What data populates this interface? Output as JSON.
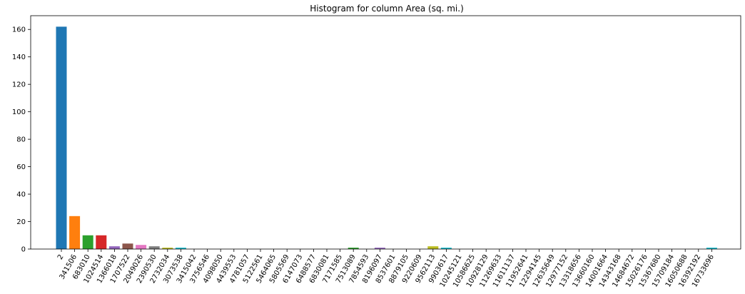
{
  "chart_data": {
    "type": "bar",
    "title": "Histogram for column Area (sq. mi.)",
    "xlabel": "",
    "ylabel": "",
    "ylim": [
      0,
      170
    ],
    "yticks": [
      0,
      20,
      40,
      60,
      80,
      100,
      120,
      140,
      160
    ],
    "grid": false,
    "categories": [
      "2",
      "341506",
      "683010",
      "1024514",
      "1366018",
      "1707522",
      "2049026",
      "2390530",
      "2732034",
      "3073538",
      "3415042",
      "3756546",
      "4098050",
      "4439553",
      "4781057",
      "5122561",
      "5464065",
      "5805569",
      "6147073",
      "6488577",
      "6830081",
      "7171585",
      "7513089",
      "7854593",
      "8196097",
      "8537601",
      "8879105",
      "9220609",
      "9562113",
      "9903617",
      "10245121",
      "10586625",
      "10928129",
      "11269633",
      "11611137",
      "11952641",
      "12294145",
      "12635649",
      "12977152",
      "13318656",
      "13660160",
      "14001664",
      "14343168",
      "14684672",
      "15026176",
      "15367680",
      "15709184",
      "16050688",
      "16392192",
      "16733696"
    ],
    "values": [
      162,
      24,
      10,
      10,
      2,
      4,
      3,
      2,
      1,
      1,
      0,
      0,
      0,
      0,
      0,
      0,
      0,
      0,
      0,
      0,
      0,
      0,
      1,
      0,
      1,
      0,
      0,
      0,
      2,
      1,
      0,
      0,
      0,
      0,
      0,
      0,
      0,
      0,
      0,
      0,
      0,
      0,
      0,
      0,
      0,
      0,
      0,
      0,
      0,
      1
    ],
    "colors": [
      "#1f77b4",
      "#ff7f0e",
      "#2ca02c",
      "#d62728",
      "#9467bd",
      "#8c564b",
      "#e377c2",
      "#7f7f7f",
      "#bcbd22",
      "#17becf"
    ]
  }
}
